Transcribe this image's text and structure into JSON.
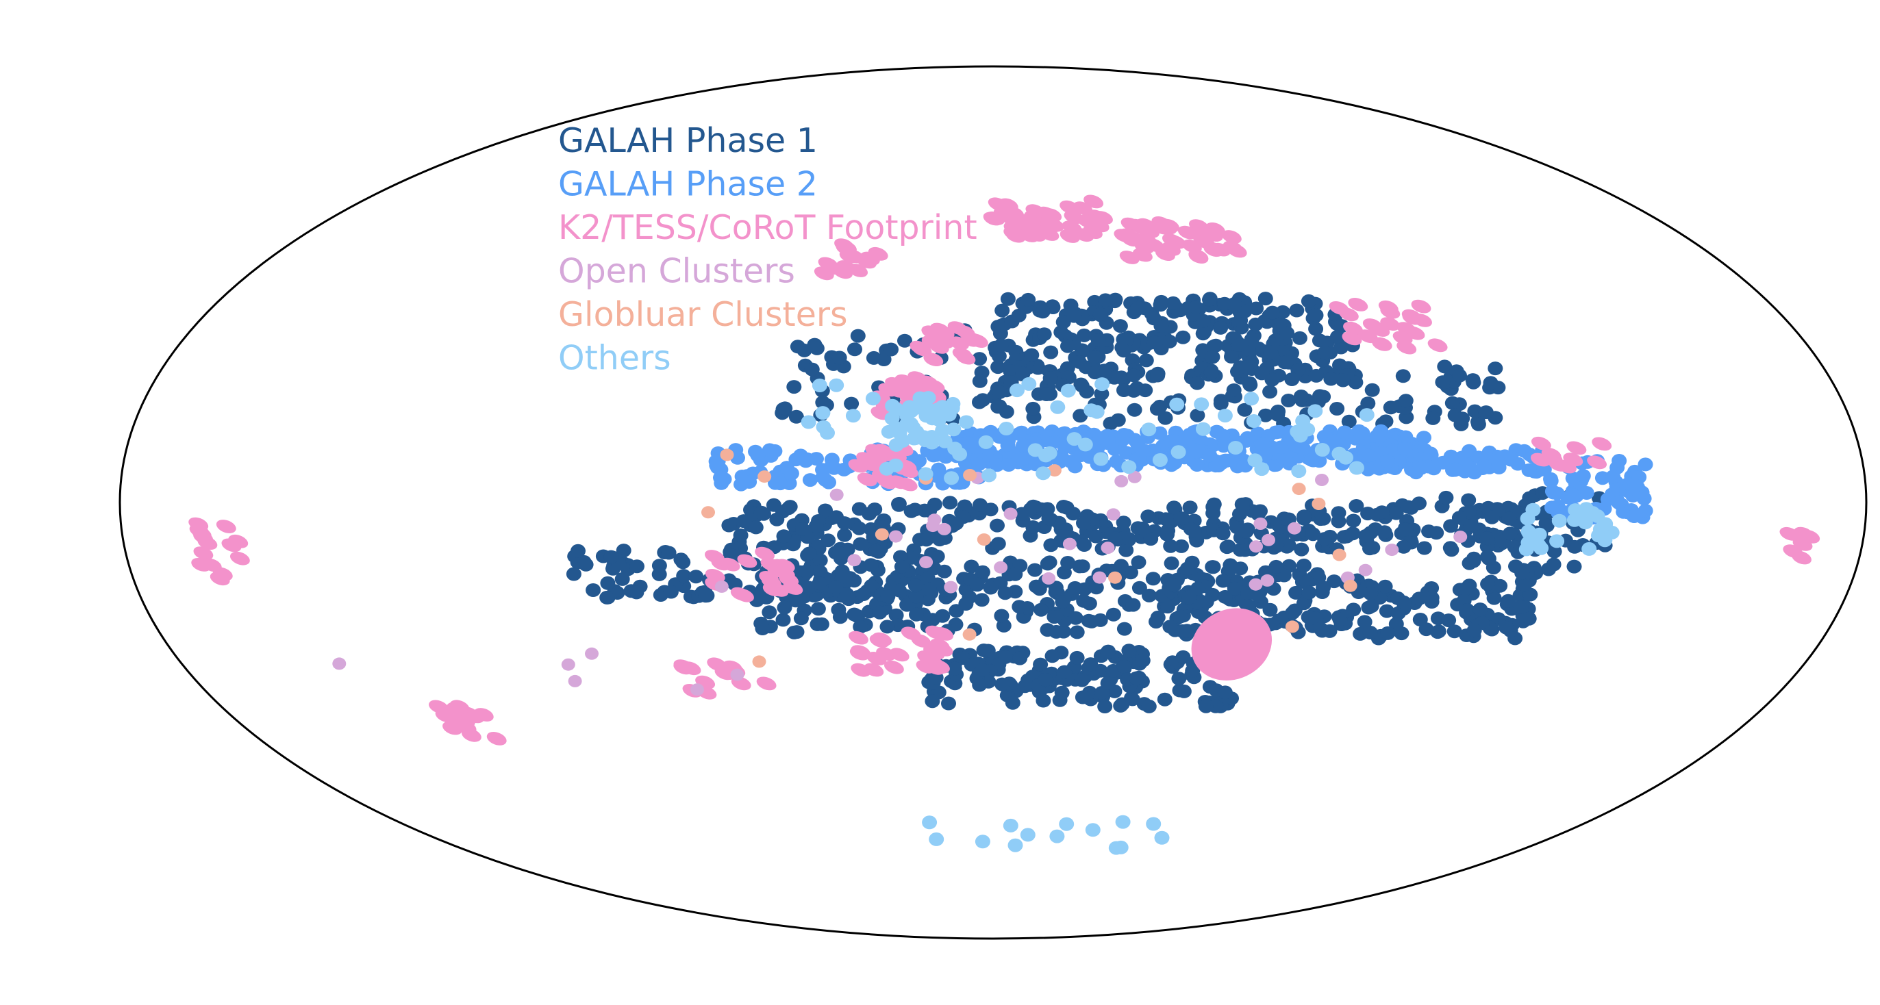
{
  "chart_data": {
    "type": "scatter",
    "projection": "mollweide",
    "title": "",
    "xlabel": "",
    "ylabel": "",
    "grid": false,
    "legend_placement": "upper-left inside",
    "legend": [
      {
        "key": "phase1",
        "label": "GALAH Phase 1",
        "color": "#23578f"
      },
      {
        "key": "phase2",
        "label": "GALAH Phase 2",
        "color": "#579ef7"
      },
      {
        "key": "k2",
        "label": "K2/TESS/CoRoT Footprint",
        "color": "#f392cb"
      },
      {
        "key": "open",
        "label": "Open Clusters",
        "color": "#d5a7d9"
      },
      {
        "key": "glob",
        "label": "Globluar Clusters",
        "color": "#f4b09a"
      },
      {
        "key": "others",
        "label": "Others",
        "color": "#90cdf7"
      }
    ],
    "series": [
      {
        "key": "phase1",
        "regions": [
          {
            "x": 40,
            "y": 28,
            "w": 80,
            "h": 14,
            "n": 260
          },
          {
            "x": 55,
            "y": 18,
            "w": 110,
            "h": 10,
            "n": 120
          },
          {
            "x": -20,
            "y": 22,
            "w": 50,
            "h": 16,
            "n": 60
          },
          {
            "x": 30,
            "y": -4,
            "w": 170,
            "h": 8,
            "n": 320
          },
          {
            "x": -50,
            "y": -12,
            "w": 80,
            "h": 8,
            "n": 120
          },
          {
            "x": 10,
            "y": -16,
            "w": 120,
            "h": 12,
            "n": 260
          },
          {
            "x": 75,
            "y": -18,
            "w": 80,
            "h": 10,
            "n": 160
          },
          {
            "x": 20,
            "y": -30,
            "w": 70,
            "h": 10,
            "n": 160
          },
          {
            "x": 110,
            "y": -5,
            "w": 35,
            "h": 14,
            "n": 50
          }
        ]
      },
      {
        "key": "phase2",
        "regions": [
          {
            "x": 40,
            "y": 9,
            "w": 100,
            "h": 6,
            "n": 340
          },
          {
            "x": 95,
            "y": 7,
            "w": 40,
            "h": 4,
            "n": 90
          },
          {
            "x": -30,
            "y": 6,
            "w": 55,
            "h": 6,
            "n": 110
          },
          {
            "x": 125,
            "y": 2,
            "w": 20,
            "h": 10,
            "n": 70
          }
        ]
      },
      {
        "key": "k2",
        "regions": [
          {
            "x": 15,
            "y": 50,
            "w": 30,
            "h": 7,
            "n": 40
          },
          {
            "x": 48,
            "y": 46,
            "w": 30,
            "h": 7,
            "n": 40
          },
          {
            "x": 90,
            "y": 30,
            "w": 22,
            "h": 8,
            "n": 22
          },
          {
            "x": -35,
            "y": 42,
            "w": 14,
            "h": 6,
            "n": 14
          },
          {
            "x": -10,
            "y": 27,
            "w": 14,
            "h": 6,
            "n": 20
          },
          {
            "x": -18,
            "y": 18,
            "w": 12,
            "h": 7,
            "n": 20
          },
          {
            "x": -23,
            "y": 6,
            "w": 12,
            "h": 6,
            "n": 20
          },
          {
            "x": -50,
            "y": -12,
            "w": 18,
            "h": 8,
            "n": 20
          },
          {
            "x": -20,
            "y": -25,
            "w": 20,
            "h": 7,
            "n": 24
          },
          {
            "x": -60,
            "y": -30,
            "w": 20,
            "h": 6,
            "n": 14
          },
          {
            "x": -125,
            "y": -38,
            "w": 12,
            "h": 6,
            "n": 14
          },
          {
            "x": -160,
            "y": -8,
            "w": 10,
            "h": 10,
            "n": 14
          },
          {
            "x": 165,
            "y": -8,
            "w": 8,
            "h": 6,
            "n": 6
          },
          {
            "x": 120,
            "y": 8,
            "w": 14,
            "h": 4,
            "n": 10
          }
        ]
      },
      {
        "key": "open",
        "regions": [
          {
            "x": 20,
            "y": -5,
            "w": 160,
            "h": 20,
            "n": 30
          },
          {
            "x": -100,
            "y": -30,
            "w": 100,
            "h": 10,
            "n": 6
          }
        ]
      },
      {
        "key": "glob",
        "regions": [
          {
            "x": 10,
            "y": -10,
            "w": 140,
            "h": 36,
            "n": 16
          }
        ]
      },
      {
        "key": "others",
        "regions": [
          {
            "x": -15,
            "y": 14,
            "w": 14,
            "h": 8,
            "n": 40
          },
          {
            "x": 20,
            "y": 12,
            "w": 120,
            "h": 16,
            "n": 60
          },
          {
            "x": 120,
            "y": -5,
            "w": 20,
            "h": 8,
            "n": 24
          },
          {
            "x": 20,
            "y": -60,
            "w": 80,
            "h": 6,
            "n": 14
          }
        ]
      }
    ],
    "k2_bulge_patch": {
      "x": 52,
      "y": -24,
      "w": 18,
      "h": 12
    }
  }
}
